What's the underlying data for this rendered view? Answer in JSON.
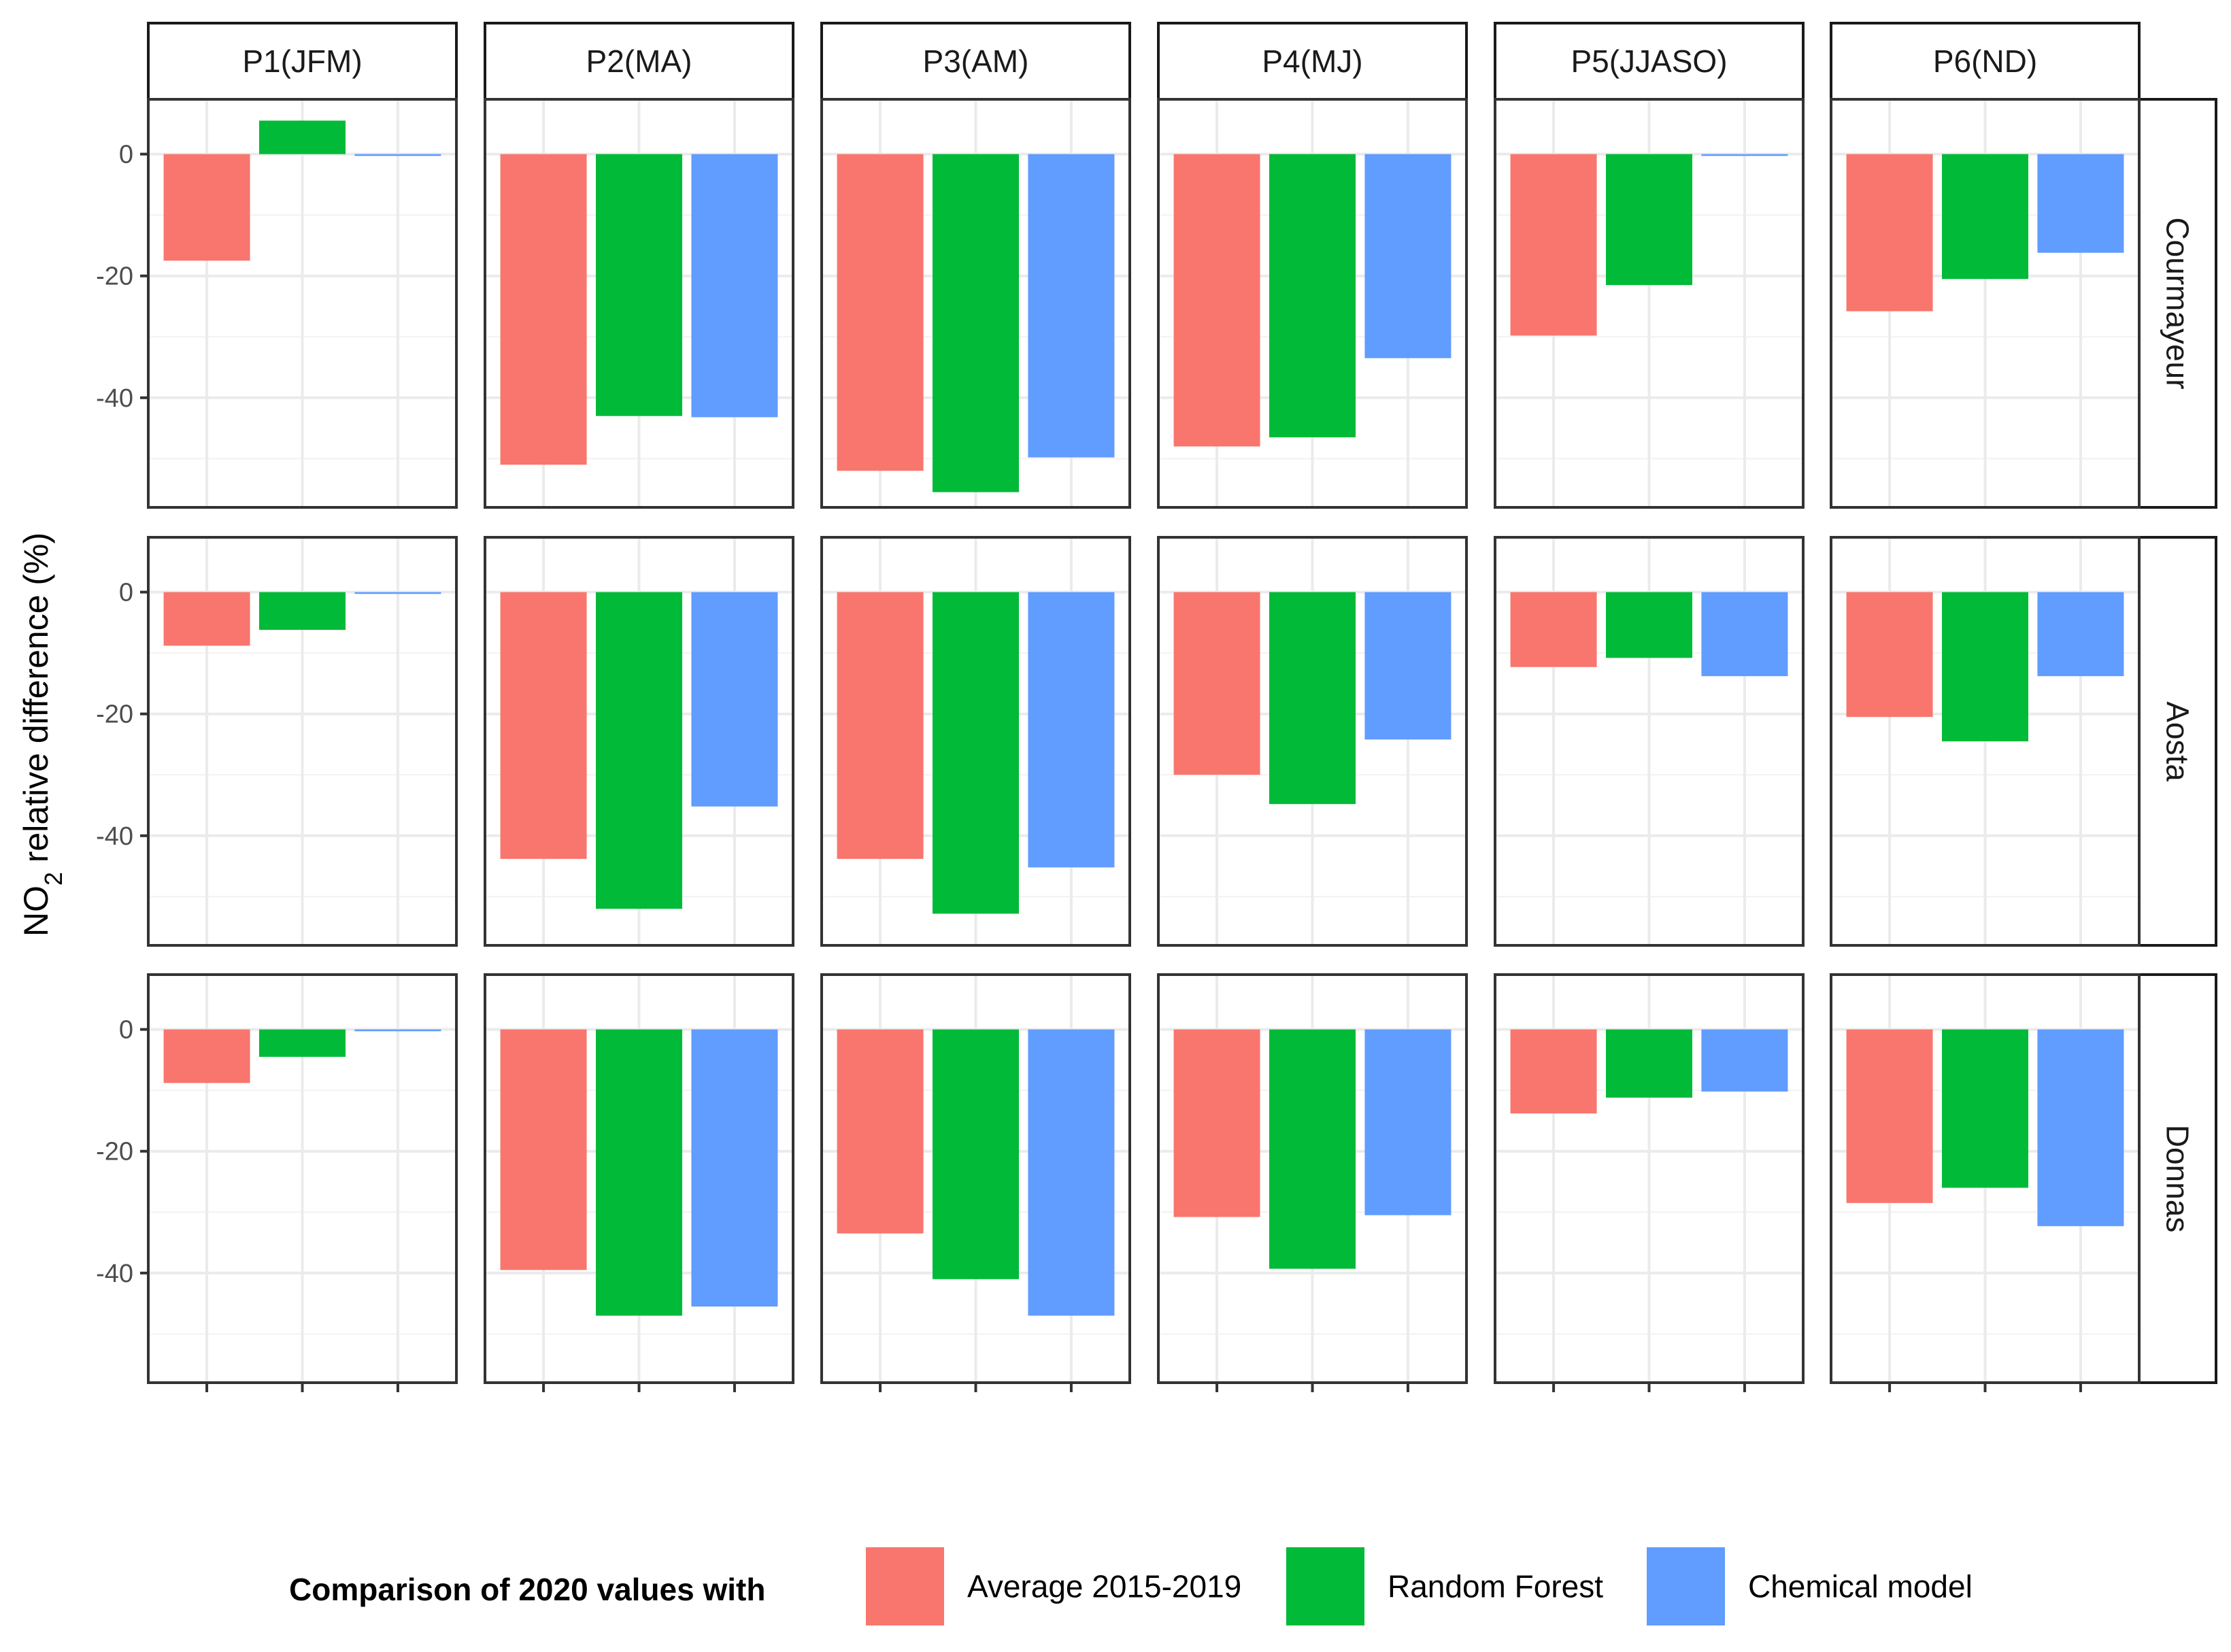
{
  "chart_data": {
    "type": "bar",
    "facet_columns": [
      "P1(JFM)",
      "P2(MA)",
      "P3(AM)",
      "P4(MJ)",
      "P5(JJASO)",
      "P6(ND)"
    ],
    "facet_rows": [
      "Courmayeur",
      "Aosta",
      "Donnas"
    ],
    "ylabel_prefix": "NO",
    "ylabel_subscript": "2",
    "ylabel_suffix": " relative difference (%)",
    "xlabel": "",
    "ylim": [
      -58,
      9
    ],
    "yticks": [
      0,
      -20,
      -40
    ],
    "ytick_labels": [
      "0",
      "-20",
      "-40"
    ],
    "legend": {
      "title": "Comparison of 2020 values with",
      "position": "bottom"
    },
    "series": [
      {
        "name": "Average 2015-2019",
        "color": "#F8766D"
      },
      {
        "name": "Random Forest",
        "color": "#00BA38"
      },
      {
        "name": "Chemical model",
        "color": "#619CFF"
      }
    ],
    "values": {
      "Courmayeur": [
        [
          -17.5,
          5.5,
          -0.3
        ],
        [
          -51,
          -43,
          -43.2
        ],
        [
          -52,
          -55.5,
          -49.8
        ],
        [
          -48,
          -46.5,
          -33.5
        ],
        [
          -29.8,
          -21.5,
          -0.3
        ],
        [
          -25.8,
          -20.5,
          -16.2
        ]
      ],
      "Aosta": [
        [
          -8.8,
          -6.2,
          -0.3
        ],
        [
          -43.8,
          -52,
          -35.2
        ],
        [
          -43.8,
          -52.8,
          -45.2
        ],
        [
          -30,
          -34.8,
          -24.2
        ],
        [
          -12.3,
          -10.8,
          -13.8
        ],
        [
          -20.5,
          -24.5,
          -13.8
        ]
      ],
      "Donnas": [
        [
          -8.8,
          -4.5,
          -0.3
        ],
        [
          -39.5,
          -47,
          -45.5
        ],
        [
          -33.5,
          -41,
          -47
        ],
        [
          -30.8,
          -39.3,
          -30.5
        ],
        [
          -13.8,
          -11.2,
          -10.2
        ],
        [
          -28.5,
          -26,
          -32.3
        ]
      ]
    }
  }
}
